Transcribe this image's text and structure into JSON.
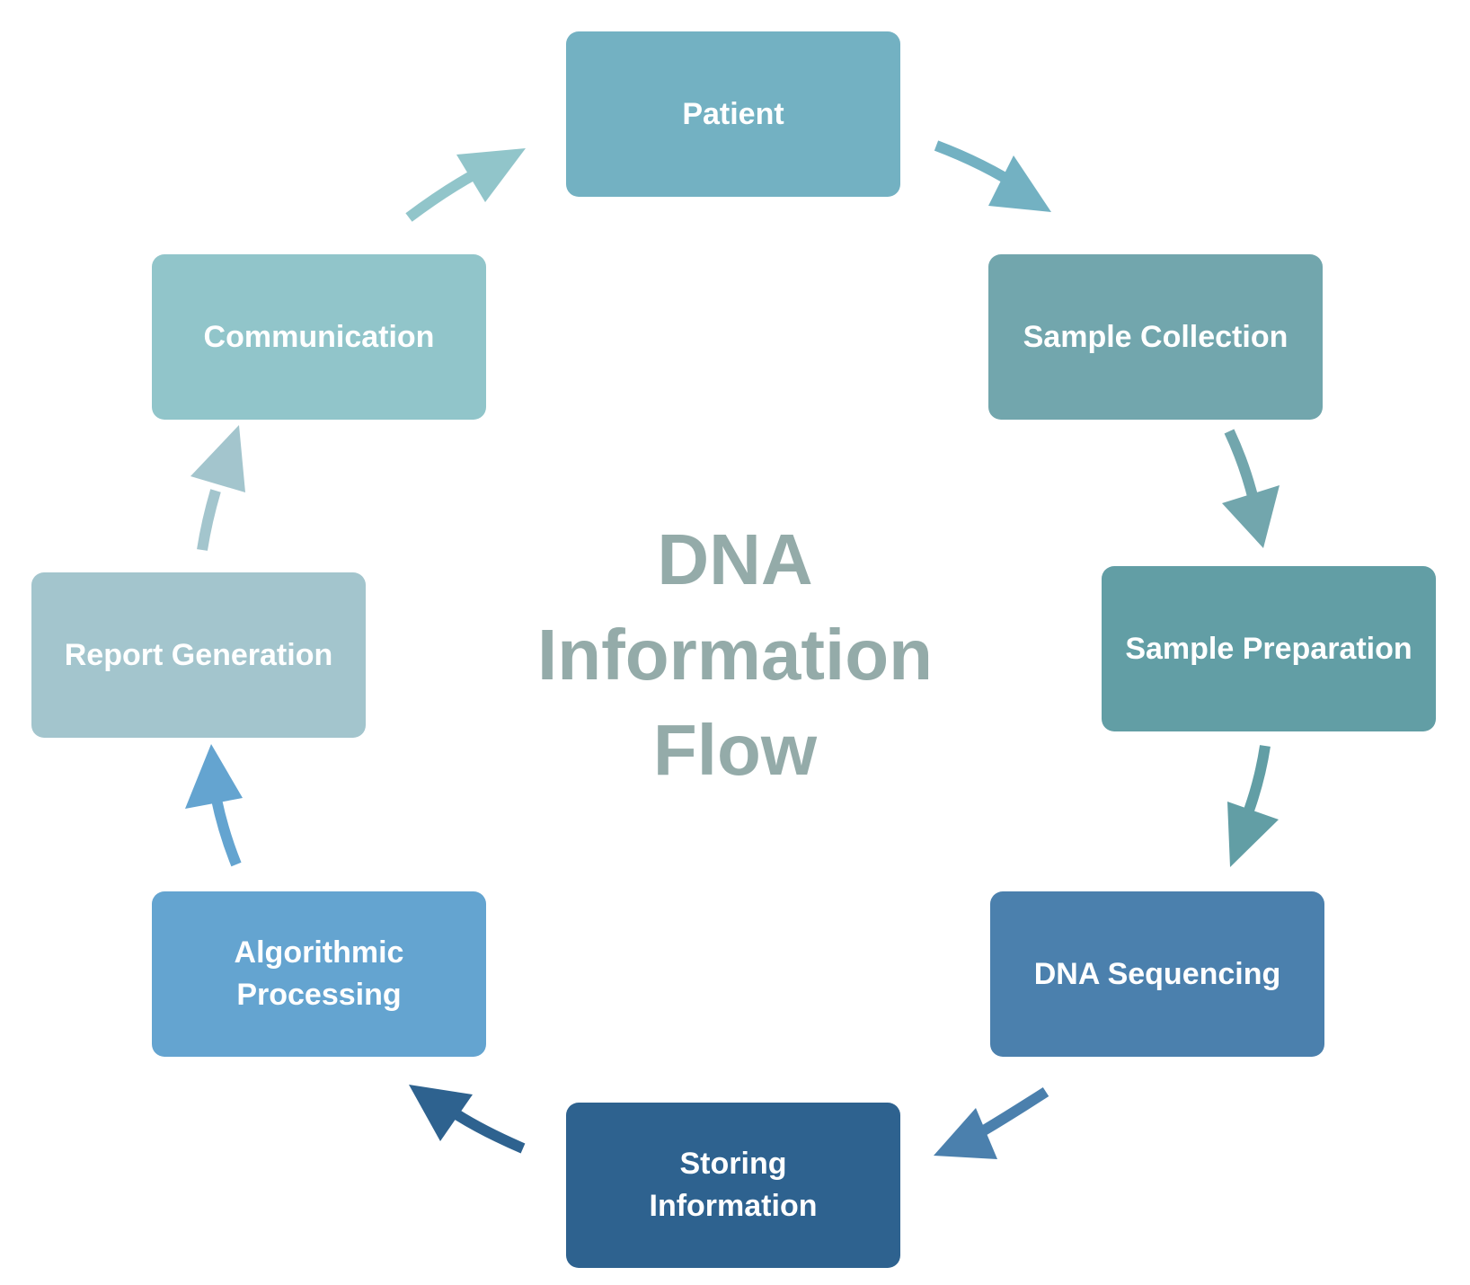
{
  "title_lines": [
    "DNA",
    "Information",
    "Flow"
  ],
  "nodes": [
    {
      "id": "patient",
      "label": "Patient",
      "color": "#73b1c2"
    },
    {
      "id": "sample-collection",
      "label": "Sample Collection",
      "color": "#72a6ad"
    },
    {
      "id": "sample-preparation",
      "label": "Sample Preparation",
      "color": "#629ea5"
    },
    {
      "id": "dna-sequencing",
      "label": "DNA Sequencing",
      "color": "#4b80ad"
    },
    {
      "id": "storing-information",
      "label": "Storing\nInformation",
      "color": "#2e628f"
    },
    {
      "id": "algorithmic-processing",
      "label": "Algorithmic\nProcessing",
      "color": "#64a4d0"
    },
    {
      "id": "report-generation",
      "label": "Report Generation",
      "color": "#a3c5cd"
    },
    {
      "id": "communication",
      "label": "Communication",
      "color": "#91c5ca"
    }
  ],
  "edges": [
    {
      "from": "patient",
      "to": "sample-collection",
      "color": "#73b1c2"
    },
    {
      "from": "sample-collection",
      "to": "sample-preparation",
      "color": "#72a6ad"
    },
    {
      "from": "sample-preparation",
      "to": "dna-sequencing",
      "color": "#629ea5"
    },
    {
      "from": "dna-sequencing",
      "to": "storing-information",
      "color": "#4b80ad"
    },
    {
      "from": "storing-information",
      "to": "algorithmic-processing",
      "color": "#2e628f"
    },
    {
      "from": "algorithmic-processing",
      "to": "report-generation",
      "color": "#64a4d0"
    },
    {
      "from": "report-generation",
      "to": "communication",
      "color": "#a3c5cd"
    },
    {
      "from": "communication",
      "to": "patient",
      "color": "#91c5ca"
    }
  ]
}
